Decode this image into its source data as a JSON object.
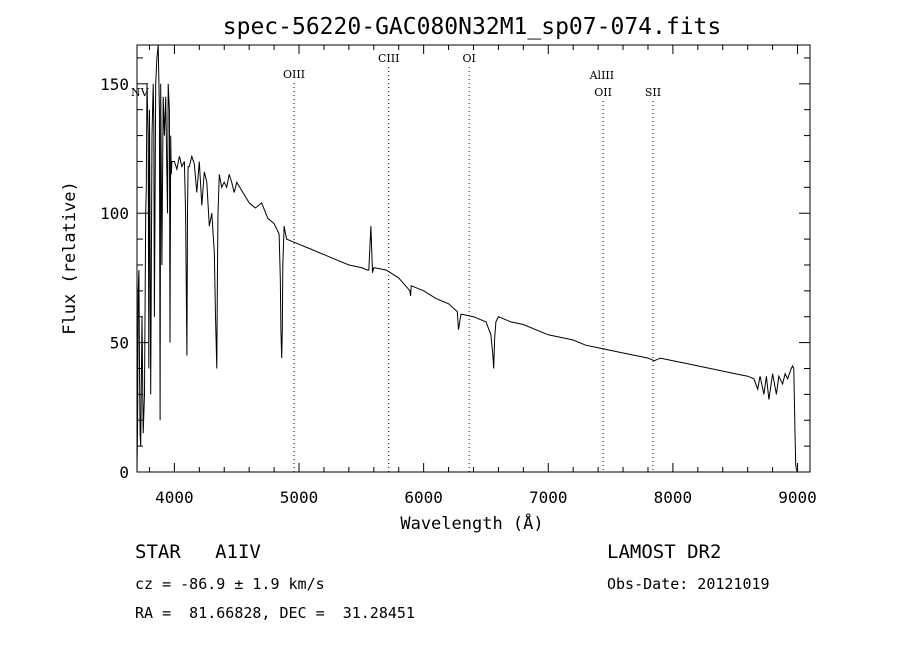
{
  "chart_data": {
    "type": "line",
    "title": "spec-56220-GAC080N32M1_sp07-074.fits",
    "xlabel": "Wavelength (Å)",
    "ylabel": "Flux (relative)",
    "xlim": [
      3700,
      9100
    ],
    "ylim": [
      0,
      165
    ],
    "xticks": [
      4000,
      5000,
      6000,
      7000,
      8000,
      9000
    ],
    "yticks": [
      0,
      50,
      100,
      150
    ],
    "grid": false,
    "series": [
      {
        "x": [
          3700,
          3705,
          3710,
          3715,
          3720,
          3725,
          3730,
          3740,
          3750,
          3760,
          3770,
          3775,
          3780,
          3790,
          3795,
          3800,
          3810,
          3820,
          3830,
          3835,
          3840,
          3850,
          3860,
          3870,
          3880,
          3885,
          3890,
          3900,
          3910,
          3920,
          3930,
          3940,
          3945,
          3950,
          3960,
          3965,
          3970,
          3975,
          3980,
          4000,
          4020,
          4040,
          4060,
          4080,
          4090,
          4100,
          4105,
          4110,
          4120,
          4140,
          4160,
          4180,
          4200,
          4220,
          4240,
          4260,
          4280,
          4300,
          4320,
          4330,
          4340,
          4345,
          4350,
          4360,
          4380,
          4400,
          4420,
          4440,
          4460,
          4480,
          4500,
          4550,
          4600,
          4650,
          4700,
          4750,
          4800,
          4820,
          4840,
          4850,
          4855,
          4861,
          4866,
          4870,
          4880,
          4900,
          4950,
          5000,
          5100,
          5200,
          5300,
          5400,
          5500,
          5550,
          5560,
          5577,
          5590,
          5600,
          5700,
          5800,
          5890,
          5895,
          5900,
          6000,
          6100,
          6200,
          6270,
          6280,
          6300,
          6400,
          6500,
          6540,
          6556,
          6562,
          6570,
          6580,
          6600,
          6700,
          6800,
          6900,
          7000,
          7100,
          7200,
          7300,
          7400,
          7500,
          7600,
          7700,
          7800,
          7850,
          7900,
          8000,
          8100,
          8200,
          8300,
          8400,
          8500,
          8600,
          8650,
          8680,
          8700,
          8730,
          8750,
          8770,
          8800,
          8830,
          8850,
          8880,
          8900,
          8920,
          8950,
          8960,
          8970,
          8980,
          8985,
          8990,
          9000
        ],
        "y": [
          0,
          20,
          70,
          78,
          40,
          15,
          10,
          60,
          15,
          30,
          100,
          110,
          150,
          130,
          40,
          140,
          30,
          130,
          150,
          135,
          60,
          150,
          160,
          165,
          140,
          20,
          150,
          80,
          145,
          130,
          145,
          115,
          100,
          150,
          140,
          50,
          130,
          115,
          120,
          120,
          117,
          122,
          118,
          120,
          100,
          45,
          100,
          118,
          118,
          122,
          119,
          108,
          120,
          103,
          116,
          112,
          95,
          100,
          85,
          60,
          40,
          75,
          100,
          115,
          110,
          112,
          110,
          115,
          112,
          108,
          112,
          108,
          104,
          102,
          104,
          98,
          96,
          94,
          92,
          75,
          55,
          44,
          55,
          80,
          95,
          90,
          89,
          88,
          86,
          84,
          82,
          80,
          79,
          78,
          78,
          95,
          77,
          79,
          78,
          75,
          70,
          68,
          72,
          70,
          67,
          65,
          62,
          55,
          61,
          60,
          58,
          53,
          45,
          40,
          52,
          58,
          60,
          58,
          57,
          55,
          53,
          52,
          51,
          49,
          48,
          47,
          46,
          45,
          44,
          43,
          44,
          43,
          42,
          41,
          40,
          39,
          38,
          37,
          36,
          32,
          37,
          30,
          37,
          28,
          38,
          30,
          37,
          34,
          38,
          36,
          40,
          41,
          40,
          15,
          3,
          1,
          0
        ]
      }
    ],
    "annotations": [
      {
        "label": "NV",
        "x": 3700
      },
      {
        "label": "OIII",
        "x": 4960
      },
      {
        "label": "CIII",
        "x": 5720
      },
      {
        "label": "OI",
        "x": 6365
      },
      {
        "label": "AlIII",
        "x": 7430
      },
      {
        "label": "OII",
        "x": 7440
      },
      {
        "label": "SII",
        "x": 7840
      }
    ]
  },
  "info": {
    "class": "STAR",
    "subclass": "A1IV",
    "survey": "LAMOST DR2",
    "cz": "cz = -86.9 ± 1.9 km/s",
    "obs_date": "Obs-Date: 20121019",
    "radec": "RA =  81.66828, DEC =  31.28451"
  }
}
